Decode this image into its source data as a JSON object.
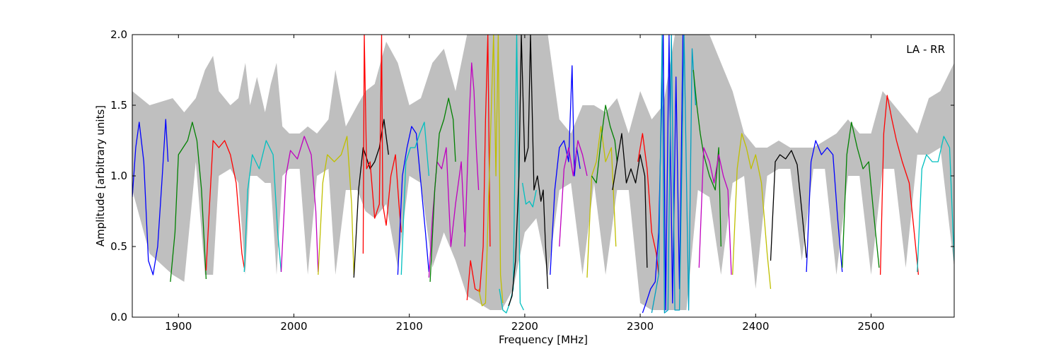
{
  "chart_data": {
    "type": "line",
    "title": "",
    "annotation": "LA - RR",
    "xlabel": "Frequency [MHz]",
    "ylabel": "Amplitude [arbitrary units]",
    "xlim": [
      1860,
      2572
    ],
    "ylim": [
      0,
      2.0
    ],
    "xticks": [
      1900,
      2000,
      2100,
      2200,
      2300,
      2400,
      2500
    ],
    "xtick_labels": [
      "1900",
      "2000",
      "2100",
      "2200",
      "2300",
      "2400",
      "2500"
    ],
    "yticks": [
      0,
      0.5,
      1.0,
      1.5,
      2.0
    ],
    "ytick_labels": [
      "0.0",
      "0.5",
      "1.0",
      "1.5",
      "2.0"
    ],
    "grid": false,
    "background_series": {
      "color": "#bfbfbf",
      "x": [
        1860,
        1875,
        1895,
        1905,
        1915,
        1923,
        1930,
        1935,
        1945,
        1952,
        1958,
        1962,
        1968,
        1975,
        1980,
        1985,
        1990,
        1996,
        2005,
        2012,
        2020,
        2030,
        2036,
        2045,
        2055,
        2062,
        2070,
        2080,
        2090,
        2100,
        2110,
        2120,
        2130,
        2140,
        2150,
        2160,
        2170,
        2180,
        2190,
        2200,
        2210,
        2220,
        2230,
        2240,
        2250,
        2260,
        2270,
        2280,
        2290,
        2300,
        2310,
        2320,
        2330,
        2340,
        2350,
        2360,
        2370,
        2380,
        2390,
        2400,
        2410,
        2420,
        2430,
        2440,
        2450,
        2460,
        2470,
        2480,
        2490,
        2500,
        2510,
        2520,
        2530,
        2540,
        2550,
        2560,
        2572
      ],
      "upper": [
        1.6,
        1.5,
        1.55,
        1.45,
        1.55,
        1.75,
        1.85,
        1.6,
        1.5,
        1.55,
        1.8,
        1.5,
        1.7,
        1.45,
        1.65,
        1.8,
        1.35,
        1.3,
        1.3,
        1.35,
        1.3,
        1.4,
        1.75,
        1.35,
        1.5,
        1.6,
        1.65,
        1.95,
        1.8,
        1.5,
        1.55,
        1.8,
        1.9,
        1.6,
        2.0,
        2.0,
        2.0,
        2.0,
        2.0,
        2.0,
        2.0,
        2.0,
        1.4,
        1.3,
        1.5,
        1.5,
        1.45,
        1.55,
        1.3,
        1.6,
        1.4,
        1.5,
        2.0,
        2.0,
        2.0,
        2.0,
        1.8,
        1.6,
        1.3,
        1.2,
        1.2,
        1.25,
        1.2,
        1.2,
        1.2,
        1.25,
        1.3,
        1.4,
        1.3,
        1.3,
        1.6,
        1.5,
        1.4,
        1.3,
        1.55,
        1.6,
        1.8
      ],
      "lower": [
        0.9,
        0.45,
        0.3,
        0.25,
        1.1,
        0.3,
        0.3,
        1.0,
        1.05,
        0.95,
        0.3,
        1.0,
        1.0,
        0.95,
        0.95,
        0.3,
        1.0,
        1.05,
        1.05,
        0.3,
        1.0,
        1.05,
        0.3,
        0.9,
        0.9,
        0.75,
        0.7,
        0.8,
        0.35,
        1.0,
        0.95,
        0.35,
        0.6,
        0.4,
        0.15,
        0.1,
        0.05,
        0.05,
        0.2,
        0.6,
        0.7,
        0.3,
        0.9,
        0.95,
        0.3,
        0.95,
        0.3,
        0.9,
        0.9,
        0.1,
        0.05,
        0.05,
        0.05,
        0.05,
        0.9,
        0.85,
        0.3,
        0.95,
        1.0,
        0.2,
        1.0,
        1.05,
        1.05,
        0.4,
        1.05,
        1.05,
        0.3,
        1.0,
        1.0,
        0.3,
        1.05,
        1.05,
        0.35,
        1.15,
        1.15,
        1.2,
        0.35
      ]
    },
    "series": [
      {
        "color": "#0000ff",
        "x": [
          1860,
          1863,
          1866,
          1870,
          1874,
          1878,
          1882,
          1886,
          1889,
          1891
        ],
        "y": [
          0.85,
          1.2,
          1.38,
          1.1,
          0.4,
          0.3,
          0.5,
          1.0,
          1.4,
          1.1
        ]
      },
      {
        "color": "#008000",
        "x": [
          1893,
          1897,
          1900,
          1904,
          1908,
          1912,
          1916,
          1920,
          1924
        ],
        "y": [
          0.25,
          0.6,
          1.15,
          1.2,
          1.25,
          1.38,
          1.25,
          0.9,
          0.27
        ]
      },
      {
        "color": "#ff0000",
        "x": [
          1924,
          1927,
          1930,
          1935,
          1940,
          1945,
          1950,
          1955,
          1957
        ],
        "y": [
          0.33,
          0.8,
          1.25,
          1.2,
          1.25,
          1.15,
          0.95,
          0.45,
          0.35
        ]
      },
      {
        "color": "#00bfbf",
        "x": [
          1957,
          1960,
          1964,
          1970,
          1976,
          1982,
          1986,
          1989
        ],
        "y": [
          0.32,
          0.9,
          1.15,
          1.05,
          1.25,
          1.15,
          0.6,
          0.32
        ]
      },
      {
        "color": "#bf00bf",
        "x": [
          1989,
          1993,
          1997,
          2003,
          2009,
          2015,
          2019,
          2021
        ],
        "y": [
          0.32,
          1.0,
          1.18,
          1.12,
          1.28,
          1.15,
          0.75,
          0.32
        ]
      },
      {
        "color": "#bfbf00",
        "x": [
          2021,
          2025,
          2029,
          2035,
          2041,
          2046,
          2050,
          2052
        ],
        "y": [
          0.3,
          0.95,
          1.15,
          1.1,
          1.15,
          1.28,
          0.8,
          0.3
        ]
      },
      {
        "color": "#000000",
        "x": [
          2052,
          2056,
          2060,
          2066,
          2070,
          2074,
          2078,
          2082
        ],
        "y": [
          0.28,
          0.9,
          1.2,
          1.05,
          1.1,
          1.2,
          1.4,
          1.15
        ]
      },
      {
        "color": "#ff0000",
        "x": [
          2060,
          2061,
          2063,
          2066,
          2070,
          2074,
          2076,
          2077,
          2080,
          2084,
          2088,
          2091,
          2093
        ],
        "y": [
          0.45,
          2.0,
          1.05,
          1.1,
          0.7,
          0.8,
          2.0,
          0.8,
          0.65,
          1.0,
          1.15,
          0.8,
          0.6
        ]
      },
      {
        "color": "#0000ff",
        "x": [
          2090,
          2094,
          2098,
          2102,
          2106,
          2110,
          2114,
          2117
        ],
        "y": [
          0.3,
          1.0,
          1.2,
          1.35,
          1.3,
          0.95,
          0.6,
          0.32
        ]
      },
      {
        "color": "#00bfbf",
        "x": [
          2093,
          2097,
          2101,
          2105,
          2109,
          2113,
          2117
        ],
        "y": [
          0.3,
          1.1,
          1.2,
          1.2,
          1.3,
          1.38,
          1.0
        ]
      },
      {
        "color": "#bf00bf",
        "x": [
          2117,
          2120,
          2124,
          2128,
          2132,
          2136,
          2140,
          2145,
          2148
        ],
        "y": [
          0.28,
          0.7,
          1.1,
          1.05,
          1.2,
          0.5,
          0.8,
          1.1,
          0.6
        ]
      },
      {
        "color": "#008000",
        "x": [
          2118,
          2122,
          2126,
          2130,
          2134,
          2138,
          2140
        ],
        "y": [
          0.25,
          0.9,
          1.3,
          1.4,
          1.55,
          1.4,
          1.1
        ]
      },
      {
        "color": "#bf00bf",
        "x": [
          2148,
          2152,
          2154,
          2156,
          2158,
          2160
        ],
        "y": [
          0.5,
          1.45,
          1.8,
          1.6,
          1.2,
          0.9
        ]
      },
      {
        "color": "#ff0000",
        "x": [
          2150,
          2153,
          2157,
          2161,
          2164,
          2166,
          2168,
          2170
        ],
        "y": [
          0.12,
          0.4,
          0.2,
          0.18,
          0.5,
          1.4,
          2.0,
          0.5
        ]
      },
      {
        "color": "#bfbf00",
        "x": [
          2160,
          2163,
          2166,
          2170,
          2173,
          2175,
          2177,
          2179,
          2181
        ],
        "y": [
          0.2,
          0.08,
          0.1,
          1.2,
          2.0,
          1.0,
          2.0,
          0.3,
          0.1
        ]
      },
      {
        "color": "#00bfbf",
        "x": [
          2178,
          2181,
          2184,
          2187,
          2190,
          2193,
          2196,
          2199
        ],
        "y": [
          0.2,
          0.05,
          0.03,
          0.1,
          0.2,
          2.0,
          0.1,
          0.05
        ]
      },
      {
        "color": "#000000",
        "x": [
          2186,
          2189,
          2192,
          2195,
          2197,
          2200,
          2203,
          2205,
          2208,
          2211,
          2214,
          2216,
          2218,
          2220
        ],
        "y": [
          0.08,
          0.15,
          0.4,
          1.0,
          2.0,
          1.1,
          1.2,
          2.0,
          0.9,
          1.0,
          0.82,
          0.9,
          0.5,
          0.2
        ]
      },
      {
        "color": "#00bfbf",
        "x": [
          2198,
          2201,
          2204,
          2207,
          2210
        ],
        "y": [
          0.95,
          0.8,
          0.82,
          0.78,
          0.9
        ]
      },
      {
        "color": "#0000ff",
        "x": [
          2222,
          2226,
          2230,
          2234,
          2238,
          2241,
          2243,
          2245,
          2248
        ],
        "y": [
          0.3,
          0.9,
          1.2,
          1.25,
          1.1,
          1.78,
          1.0,
          1.2,
          1.05
        ]
      },
      {
        "color": "#bf00bf",
        "x": [
          2230,
          2234,
          2238,
          2242,
          2246,
          2250,
          2254
        ],
        "y": [
          0.5,
          1.05,
          1.2,
          1.0,
          1.25,
          1.15,
          1.0
        ]
      },
      {
        "color": "#bfbf00",
        "x": [
          2254,
          2258,
          2262,
          2266,
          2270,
          2275,
          2279
        ],
        "y": [
          0.28,
          1.0,
          1.1,
          1.35,
          1.1,
          1.2,
          0.5
        ]
      },
      {
        "color": "#008000",
        "x": [
          2258,
          2262,
          2266,
          2270,
          2274,
          2278,
          2280
        ],
        "y": [
          1.0,
          0.95,
          1.25,
          1.5,
          1.35,
          1.25,
          1.1
        ]
      },
      {
        "color": "#000000",
        "x": [
          2276,
          2280,
          2284,
          2288,
          2292,
          2296,
          2300,
          2304,
          2306
        ],
        "y": [
          0.9,
          1.1,
          1.3,
          0.95,
          1.05,
          0.95,
          1.15,
          1.0,
          0.35
        ]
      },
      {
        "color": "#ff0000",
        "x": [
          2298,
          2302,
          2306,
          2310,
          2314,
          2316
        ],
        "y": [
          1.1,
          1.3,
          1.05,
          0.6,
          0.45,
          0.3
        ]
      },
      {
        "color": "#0000ff",
        "x": [
          2302,
          2305,
          2309,
          2313,
          2316,
          2320,
          2322,
          2325,
          2328,
          2331,
          2334,
          2337
        ],
        "y": [
          0.03,
          0.1,
          0.2,
          0.25,
          0.6,
          2.0,
          0.05,
          2.0,
          0.1,
          1.7,
          0.2,
          2.0
        ]
      },
      {
        "color": "#00a0c0",
        "x": [
          2310,
          2316,
          2319,
          2321,
          2324,
          2327,
          2330,
          2334,
          2338,
          2342,
          2345,
          2348
        ],
        "y": [
          0.03,
          0.3,
          2.0,
          0.03,
          0.05,
          2.0,
          0.05,
          0.05,
          2.0,
          0.05,
          1.9,
          1.5
        ]
      },
      {
        "color": "#008000",
        "x": [
          2346,
          2349,
          2352,
          2355,
          2360,
          2365,
          2368,
          2370
        ],
        "y": [
          1.75,
          1.5,
          1.3,
          1.15,
          1.0,
          0.9,
          1.2,
          0.5
        ]
      },
      {
        "color": "#bf00bf",
        "x": [
          2351,
          2355,
          2360,
          2364,
          2368,
          2372,
          2376,
          2379
        ],
        "y": [
          0.35,
          1.2,
          1.1,
          0.95,
          1.15,
          1.0,
          0.9,
          0.3
        ]
      },
      {
        "color": "#bfbf00",
        "x": [
          2380,
          2384,
          2388,
          2392,
          2396,
          2400,
          2405,
          2410,
          2413
        ],
        "y": [
          0.3,
          1.05,
          1.3,
          1.2,
          1.05,
          1.15,
          0.95,
          0.45,
          0.2
        ]
      },
      {
        "color": "#000000",
        "x": [
          2413,
          2417,
          2421,
          2426,
          2431,
          2436,
          2440,
          2444
        ],
        "y": [
          0.4,
          1.1,
          1.15,
          1.12,
          1.18,
          1.08,
          0.75,
          0.42
        ]
      },
      {
        "color": "#0000ff",
        "x": [
          2444,
          2448,
          2452,
          2457,
          2462,
          2467,
          2471,
          2475
        ],
        "y": [
          0.32,
          1.1,
          1.25,
          1.15,
          1.2,
          1.15,
          0.7,
          0.32
        ]
      },
      {
        "color": "#008000",
        "x": [
          2475,
          2479,
          2483,
          2488,
          2493,
          2498,
          2502,
          2507
        ],
        "y": [
          0.35,
          1.15,
          1.38,
          1.2,
          1.05,
          1.1,
          0.75,
          0.35
        ]
      },
      {
        "color": "#ff0000",
        "x": [
          2508,
          2511,
          2514,
          2518,
          2522,
          2527,
          2533,
          2538,
          2541
        ],
        "y": [
          0.3,
          1.3,
          1.57,
          1.4,
          1.25,
          1.1,
          0.95,
          0.55,
          0.3
        ]
      },
      {
        "color": "#00bfbf",
        "x": [
          2540,
          2544,
          2548,
          2553,
          2558,
          2563,
          2568,
          2572
        ],
        "y": [
          0.32,
          1.05,
          1.15,
          1.1,
          1.1,
          1.28,
          1.2,
          0.4
        ]
      }
    ]
  }
}
